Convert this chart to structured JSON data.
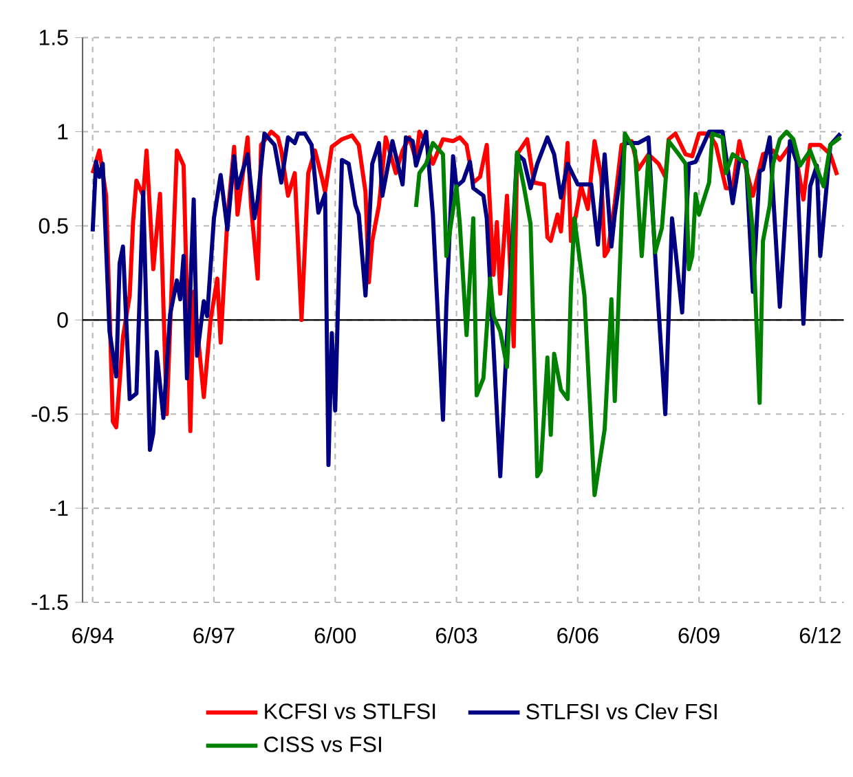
{
  "chart_data": {
    "type": "line",
    "xlim": [
      "1994-03",
      "2013-01"
    ],
    "ylim": [
      -1.5,
      1.5
    ],
    "xticks": [
      {
        "value": "1994-06",
        "label": "6/94"
      },
      {
        "value": "1997-06",
        "label": "6/97"
      },
      {
        "value": "2000-06",
        "label": "6/00"
      },
      {
        "value": "2003-06",
        "label": "6/03"
      },
      {
        "value": "2006-06",
        "label": "6/06"
      },
      {
        "value": "2009-06",
        "label": "6/09"
      },
      {
        "value": "2012-06",
        "label": "6/12"
      }
    ],
    "yticks": [
      -1.5,
      -1,
      -0.5,
      0,
      0.5,
      1,
      1.5
    ],
    "grid": true,
    "legend": "bottom",
    "ref_lines": [
      {
        "axis": "y",
        "value": 0,
        "color": "#000000"
      }
    ],
    "series": [
      {
        "name": "KCFSI vs STLFSI",
        "color": "#ff0000",
        "x": [
          "1994-06",
          "1994-08",
          "1994-10",
          "1994-12",
          "1995-01",
          "1995-03",
          "1995-05",
          "1995-06",
          "1995-07",
          "1995-09",
          "1995-10",
          "1995-12",
          "1996-02",
          "1996-04",
          "1996-07",
          "1996-09",
          "1996-11",
          "1996-12",
          "1997-03",
          "1997-05",
          "1997-07",
          "1997-08",
          "1997-10",
          "1997-12",
          "1998-01",
          "1998-04",
          "1998-05",
          "1998-07",
          "1998-08",
          "1998-11",
          "1999-01",
          "1999-02",
          "1999-04",
          "1999-06",
          "1999-08",
          "1999-10",
          "1999-12",
          "2000-02",
          "2000-03",
          "2000-05",
          "2000-08",
          "2000-11",
          "2001-01",
          "2001-03",
          "2001-04",
          "2001-05",
          "2001-07",
          "2001-09",
          "2001-12",
          "2002-02",
          "2002-04",
          "2002-06",
          "2002-07",
          "2002-09",
          "2002-11",
          "2003-02",
          "2003-05",
          "2003-07",
          "2003-09",
          "2003-11",
          "2004-01",
          "2004-03",
          "2004-05",
          "2004-06",
          "2004-07",
          "2004-09",
          "2004-11",
          "2004-12",
          "2005-03",
          "2005-05",
          "2005-08",
          "2005-09",
          "2005-10",
          "2005-12",
          "2006-01",
          "2006-03",
          "2006-04",
          "2006-06",
          "2006-07",
          "2006-09",
          "2006-11",
          "2007-01",
          "2007-02",
          "2007-03",
          "2007-05",
          "2007-07",
          "2007-10",
          "2007-12",
          "2008-03",
          "2008-06",
          "2008-08",
          "2008-09",
          "2008-11",
          "2009-02",
          "2009-04",
          "2009-06",
          "2009-09",
          "2009-11",
          "2010-02",
          "2010-04",
          "2010-06",
          "2010-08",
          "2010-10",
          "2011-01",
          "2011-04",
          "2011-06",
          "2011-10",
          "2012-01",
          "2012-03",
          "2012-06",
          "2012-09",
          "2012-11"
        ],
        "values": [
          0.78,
          0.9,
          0.66,
          -0.54,
          -0.57,
          -0.09,
          0.13,
          0.52,
          0.74,
          0.66,
          0.9,
          0.27,
          0.67,
          -0.5,
          0.9,
          0.82,
          -0.59,
          0.15,
          -0.41,
          0.0,
          0.22,
          -0.12,
          0.54,
          0.92,
          0.56,
          0.97,
          0.61,
          0.22,
          0.93,
          1.0,
          0.97,
          0.9,
          0.66,
          0.78,
          0.0,
          0.78,
          0.9,
          0.76,
          0.68,
          0.92,
          0.96,
          0.98,
          0.93,
          0.68,
          0.2,
          0.42,
          0.61,
          0.97,
          0.78,
          0.9,
          0.97,
          0.85,
          1.0,
          0.94,
          0.83,
          0.96,
          0.95,
          0.97,
          0.93,
          0.73,
          0.76,
          0.93,
          0.24,
          0.52,
          0.14,
          0.66,
          -0.14,
          0.88,
          0.96,
          0.73,
          0.72,
          0.44,
          0.42,
          0.56,
          0.47,
          0.94,
          0.42,
          0.61,
          0.71,
          0.59,
          0.95,
          0.76,
          0.34,
          0.37,
          0.62,
          0.93,
          0.95,
          0.8,
          0.88,
          0.83,
          0.76,
          0.96,
          0.99,
          0.88,
          0.87,
          0.99,
          0.99,
          0.93,
          0.7,
          0.7,
          0.95,
          0.8,
          0.66,
          0.88,
          0.9,
          0.85,
          0.95,
          0.64,
          0.93,
          0.93,
          0.88,
          0.77
        ]
      },
      {
        "name": "STLFSI vs Clev FSI",
        "color": "#000080",
        "x": [
          "1994-06",
          "1994-07",
          "1994-08",
          "1994-09",
          "1994-11",
          "1995-01",
          "1995-02",
          "1995-03",
          "1995-05",
          "1995-07",
          "1995-09",
          "1995-11",
          "1995-12",
          "1996-01",
          "1996-03",
          "1996-05",
          "1996-07",
          "1996-08",
          "1996-09",
          "1996-10",
          "1996-12",
          "1997-01",
          "1997-03",
          "1997-04",
          "1997-06",
          "1997-08",
          "1997-10",
          "1997-12",
          "1998-01",
          "1998-04",
          "1998-06",
          "1998-07",
          "1998-09",
          "1998-12",
          "1999-02",
          "1999-04",
          "1999-06",
          "1999-07",
          "1999-09",
          "1999-11",
          "2000-01",
          "2000-03",
          "2000-04",
          "2000-05",
          "2000-06",
          "2000-08",
          "2000-10",
          "2000-12",
          "2001-01",
          "2001-03",
          "2001-05",
          "2001-07",
          "2001-08",
          "2001-11",
          "2002-02",
          "2002-03",
          "2002-05",
          "2002-06",
          "2002-09",
          "2002-11",
          "2003-02",
          "2003-03",
          "2003-05",
          "2003-06",
          "2003-08",
          "2003-10",
          "2003-11",
          "2004-02",
          "2004-03",
          "2004-07",
          "2004-09",
          "2004-12",
          "2005-02",
          "2005-04",
          "2005-06",
          "2005-09",
          "2005-11",
          "2006-01",
          "2006-03",
          "2006-06",
          "2006-10",
          "2006-12",
          "2007-02",
          "2007-04",
          "2007-05",
          "2007-08",
          "2007-12",
          "2008-03",
          "2008-05",
          "2008-08",
          "2008-10",
          "2009-01",
          "2009-03",
          "2009-05",
          "2009-09",
          "2010-01",
          "2010-04",
          "2010-06",
          "2010-08",
          "2010-10",
          "2010-12",
          "2011-01",
          "2011-03",
          "2011-06",
          "2011-09",
          "2011-11",
          "2012-01",
          "2012-03",
          "2012-05",
          "2012-06",
          "2012-09",
          "2012-12"
        ],
        "values": [
          0.47,
          0.84,
          0.76,
          0.83,
          -0.06,
          -0.3,
          0.3,
          0.39,
          -0.42,
          -0.39,
          0.68,
          -0.69,
          -0.6,
          -0.17,
          -0.52,
          0.03,
          0.21,
          0.11,
          0.34,
          -0.31,
          0.64,
          -0.19,
          0.1,
          0.02,
          0.54,
          0.77,
          0.48,
          0.87,
          0.7,
          0.88,
          0.54,
          0.64,
          0.99,
          0.93,
          0.73,
          0.97,
          0.94,
          0.99,
          0.99,
          0.93,
          0.57,
          0.67,
          -0.77,
          -0.07,
          -0.48,
          0.85,
          0.83,
          0.61,
          0.56,
          0.13,
          0.83,
          0.94,
          0.66,
          0.95,
          0.72,
          0.97,
          0.95,
          0.82,
          1.0,
          0.56,
          -0.53,
          0.08,
          0.87,
          0.71,
          0.74,
          0.84,
          0.7,
          0.66,
          0.54,
          -0.83,
          -0.09,
          0.88,
          0.85,
          0.7,
          0.83,
          0.97,
          0.88,
          0.65,
          0.83,
          0.72,
          0.72,
          0.4,
          0.88,
          0.39,
          0.56,
          0.94,
          0.94,
          0.97,
          0.34,
          -0.5,
          0.54,
          0.04,
          0.83,
          0.84,
          1.0,
          1.0,
          0.62,
          0.85,
          0.84,
          0.15,
          0.79,
          0.8,
          0.97,
          0.07,
          0.95,
          0.84,
          -0.02,
          0.71,
          0.82,
          0.34,
          0.93,
          0.99
        ]
      },
      {
        "name": "CISS vs FSI",
        "color": "#008000",
        "x": [
          "2002-06",
          "2002-07",
          "2002-09",
          "2002-11",
          "2003-02",
          "2003-03",
          "2003-06",
          "2003-07",
          "2003-09",
          "2003-11",
          "2003-12",
          "2004-02",
          "2004-04",
          "2004-05",
          "2004-07",
          "2004-09",
          "2004-12",
          "2005-02",
          "2005-04",
          "2005-06",
          "2005-07",
          "2005-09",
          "2005-10",
          "2005-11",
          "2006-01",
          "2006-03",
          "2006-04",
          "2006-05",
          "2006-08",
          "2006-11",
          "2007-02",
          "2007-04",
          "2007-05",
          "2007-08",
          "2007-11",
          "2008-01",
          "2008-03",
          "2008-05",
          "2008-07",
          "2008-09",
          "2008-12",
          "2009-02",
          "2009-03",
          "2009-04",
          "2009-05",
          "2009-06",
          "2009-09",
          "2009-10",
          "2010-01",
          "2010-02",
          "2010-04",
          "2010-08",
          "2010-10",
          "2010-12",
          "2011-01",
          "2011-03",
          "2011-04",
          "2011-06",
          "2011-08",
          "2011-10",
          "2011-12",
          "2012-03",
          "2012-07",
          "2012-09",
          "2012-12"
        ],
        "values": [
          0.6,
          0.78,
          0.83,
          0.94,
          0.88,
          0.34,
          0.71,
          0.51,
          -0.08,
          0.54,
          -0.4,
          -0.31,
          0.22,
          0.02,
          -0.06,
          -0.25,
          0.89,
          0.71,
          0.51,
          -0.83,
          -0.8,
          -0.2,
          -0.61,
          -0.18,
          -0.37,
          -0.42,
          0.17,
          0.54,
          0.13,
          -0.93,
          -0.58,
          0.11,
          -0.43,
          0.99,
          0.9,
          0.34,
          0.87,
          0.36,
          0.49,
          0.95,
          0.88,
          0.83,
          0.27,
          0.34,
          0.67,
          0.56,
          0.73,
          0.99,
          0.97,
          0.78,
          0.88,
          0.83,
          0.47,
          -0.44,
          0.42,
          0.61,
          0.83,
          0.96,
          1.0,
          0.96,
          0.82,
          0.9,
          0.71,
          0.93,
          0.97
        ]
      }
    ]
  }
}
